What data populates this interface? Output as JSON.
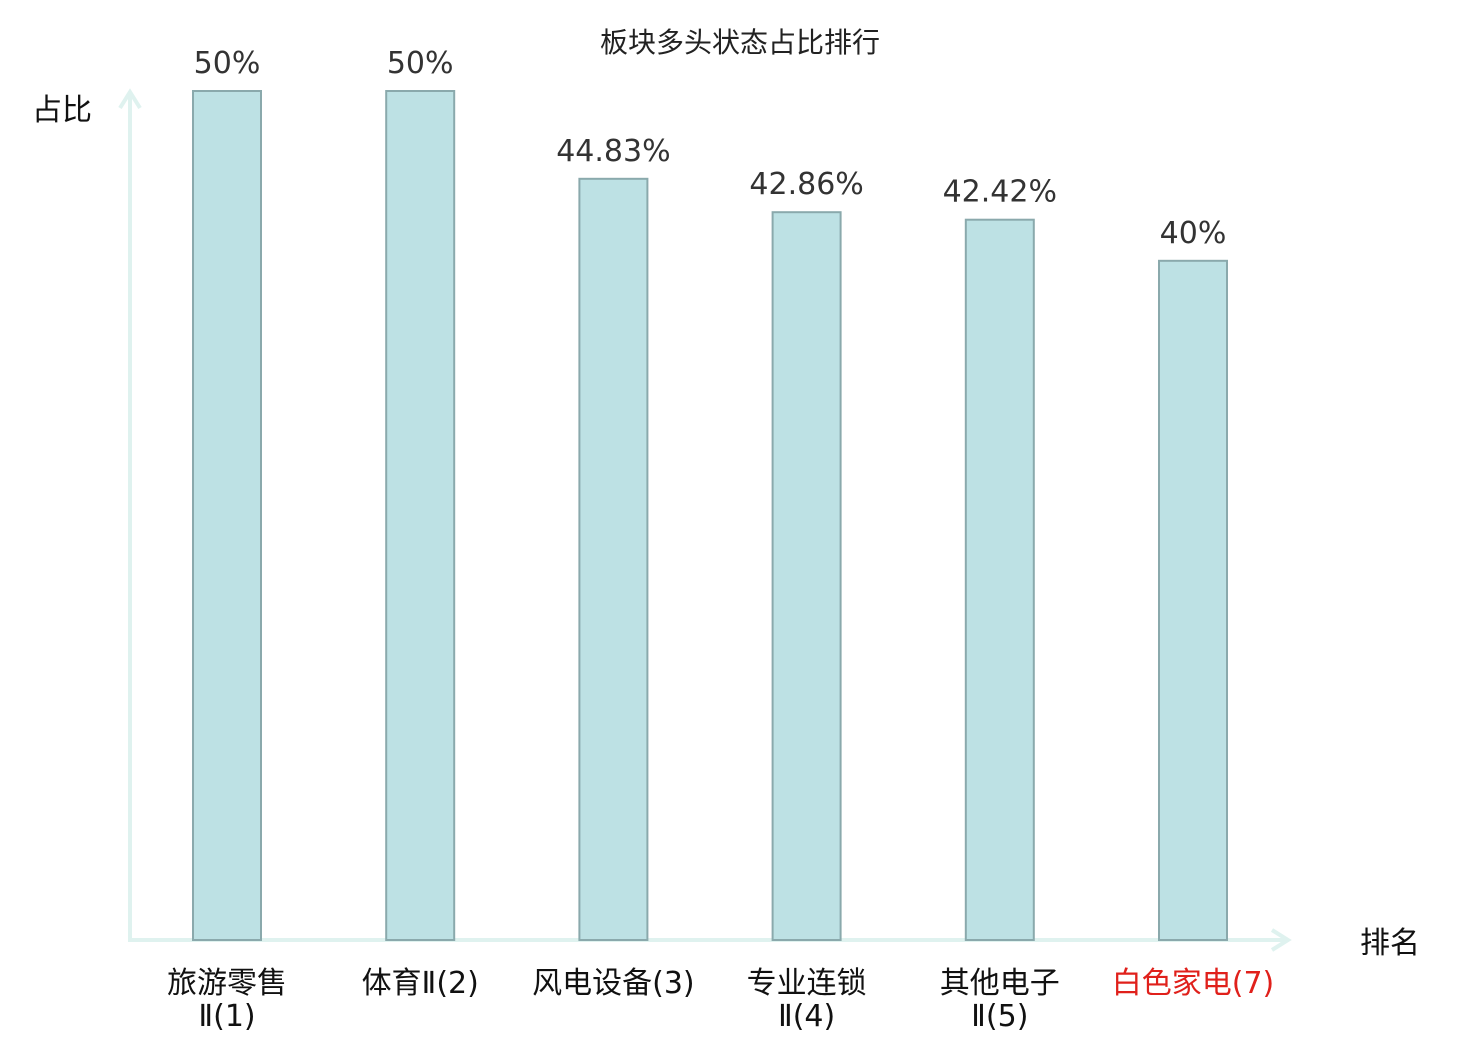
{
  "chart_data": {
    "type": "bar",
    "title": "板块多头状态占比排行",
    "xlabel": "排名",
    "ylabel": "占比",
    "ylim": [
      0,
      50
    ],
    "grid": false,
    "legend": "none",
    "categories": [
      {
        "lines": [
          "旅游零售",
          "Ⅱ(1)"
        ],
        "highlight": false
      },
      {
        "lines": [
          "体育Ⅱ(2)"
        ],
        "highlight": false
      },
      {
        "lines": [
          "风电设备(3)"
        ],
        "highlight": false
      },
      {
        "lines": [
          "专业连锁",
          "Ⅱ(4)"
        ],
        "highlight": false
      },
      {
        "lines": [
          "其他电子",
          "Ⅱ(5)"
        ],
        "highlight": false
      },
      {
        "lines": [
          "白色家电(7)"
        ],
        "highlight": true
      }
    ],
    "values": [
      50,
      50,
      44.83,
      42.86,
      42.42,
      40
    ],
    "value_labels": [
      "50%",
      "50%",
      "44.83%",
      "42.86%",
      "42.42%",
      "40%"
    ],
    "colors": {
      "bar_fill": "#bde1e4",
      "bar_stroke": "#8aa9ac",
      "axis": "#dff2ef",
      "highlight_label": "#e0201b"
    }
  }
}
